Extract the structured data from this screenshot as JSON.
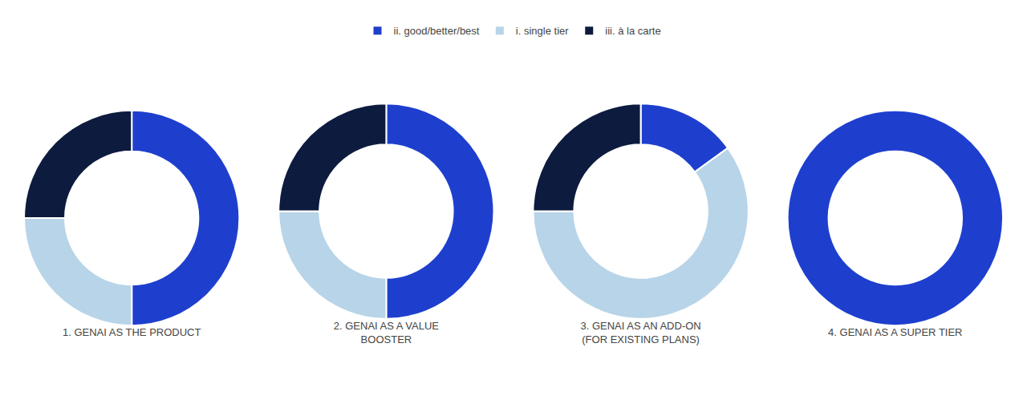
{
  "chart_data": [
    {
      "type": "donut",
      "title": "1. GENAI AS THE PRODUCT",
      "categories": [
        "ii. good/better/best",
        "i. single tier",
        "iii. à la carte"
      ],
      "values": [
        50,
        25,
        25
      ],
      "colors": [
        "#1e3fce",
        "#b8d4e8",
        "#0d1b3e"
      ]
    },
    {
      "type": "donut",
      "title": "2. GENAI AS A VALUE\nBOOSTER",
      "categories": [
        "ii. good/better/best",
        "i. single tier",
        "iii. à la carte"
      ],
      "values": [
        50,
        25,
        25
      ],
      "colors": [
        "#1e3fce",
        "#b8d4e8",
        "#0d1b3e"
      ]
    },
    {
      "type": "donut",
      "title": "3. GENAI AS AN ADD-ON\n(FOR EXISTING PLANS)",
      "categories": [
        "ii. good/better/best",
        "i. single tier",
        "iii. à la carte"
      ],
      "values": [
        15,
        60,
        25
      ],
      "colors": [
        "#1e3fce",
        "#b8d4e8",
        "#0d1b3e"
      ]
    },
    {
      "type": "donut",
      "title": "4. GENAI AS A SUPER TIER",
      "categories": [
        "ii. good/better/best"
      ],
      "values": [
        100
      ],
      "colors": [
        "#1e3fce"
      ]
    }
  ]
}
